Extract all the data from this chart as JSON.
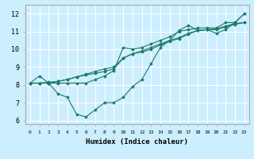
{
  "xlabel": "Humidex (Indice chaleur)",
  "background_color": "#cceeff",
  "grid_color": "#ffffff",
  "line_color": "#1a7a6a",
  "xlim": [
    -0.5,
    23.5
  ],
  "ylim": [
    5.8,
    12.5
  ],
  "yticks": [
    6,
    7,
    8,
    9,
    10,
    11,
    12
  ],
  "xticks": [
    0,
    1,
    2,
    3,
    4,
    5,
    6,
    7,
    8,
    9,
    10,
    11,
    12,
    13,
    14,
    15,
    16,
    17,
    18,
    19,
    20,
    21,
    22,
    23
  ],
  "series": [
    [
      8.1,
      8.5,
      8.1,
      7.5,
      7.3,
      6.35,
      6.2,
      6.6,
      7.0,
      7.0,
      7.3,
      7.9,
      8.3,
      9.2,
      10.1,
      10.5,
      11.05,
      11.35,
      11.05,
      11.1,
      10.9,
      11.1,
      11.5,
      12.0
    ],
    [
      8.1,
      8.1,
      8.15,
      8.2,
      8.3,
      8.45,
      8.6,
      8.75,
      8.9,
      9.0,
      9.5,
      9.75,
      9.9,
      10.1,
      10.3,
      10.5,
      10.65,
      10.9,
      11.05,
      11.1,
      11.15,
      11.3,
      11.45,
      11.5
    ],
    [
      8.1,
      8.1,
      8.1,
      8.2,
      8.3,
      8.45,
      8.55,
      8.65,
      8.75,
      8.9,
      9.5,
      9.75,
      9.85,
      10.0,
      10.25,
      10.45,
      10.6,
      10.85,
      11.05,
      11.1,
      11.1,
      11.25,
      11.4,
      11.5
    ],
    [
      8.1,
      8.1,
      8.1,
      8.1,
      8.1,
      8.1,
      8.1,
      8.3,
      8.5,
      8.8,
      10.1,
      10.0,
      10.1,
      10.3,
      10.5,
      10.7,
      11.0,
      11.1,
      11.2,
      11.2,
      11.2,
      11.5,
      11.5,
      12.0
    ]
  ]
}
